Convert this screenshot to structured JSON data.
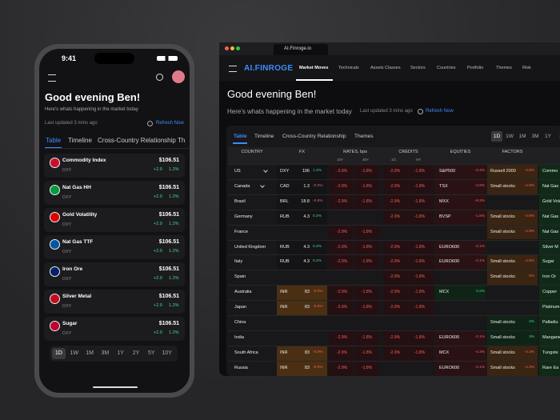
{
  "phone": {
    "time": "9:41",
    "greeting": "Good evening Ben!",
    "subtitle": "Here's whats happening in the market today",
    "updated": "Last updated 3 mins ago",
    "refresh": "Refresh Now",
    "tabs": [
      "Table",
      "Timeline",
      "Cross-Country Relationship",
      "Th"
    ],
    "items": [
      {
        "name": "Commodity Index",
        "sub": "DXY",
        "price": "$106.51",
        "change": "+2.9",
        "pct": "1.2%"
      },
      {
        "name": "Nat Gas HH",
        "sub": "DXY",
        "price": "$106.51",
        "change": "+2.9",
        "pct": "1.2%"
      },
      {
        "name": "Gold Volatility",
        "sub": "DXY",
        "price": "$106.51",
        "change": "+2.9",
        "pct": "1.2%"
      },
      {
        "name": "Nat Gas TTF",
        "sub": "DXY",
        "price": "$106.51",
        "change": "+2.9",
        "pct": "1.2%"
      },
      {
        "name": "Iron Ore",
        "sub": "DXY",
        "price": "$106.51",
        "change": "+2.9",
        "pct": "1.2%"
      },
      {
        "name": "Silver Metal",
        "sub": "DXY",
        "price": "$106.51",
        "change": "+2.9",
        "pct": "1.2%"
      },
      {
        "name": "Sugar",
        "sub": "DXY",
        "price": "$106.51",
        "change": "+2.9",
        "pct": "1.2%"
      }
    ],
    "ranges": [
      "1D",
      "1W",
      "1M",
      "3M",
      "1Y",
      "2Y",
      "5Y",
      "10Y"
    ]
  },
  "browser": {
    "tab_title": "AI.Finroge.io",
    "logo": "AI.FINROGE",
    "nav": [
      "Market Moves",
      "Technicals",
      "Assets Classes",
      "Sectors",
      "Countries",
      "Portfolio",
      "Themes",
      "Risk"
    ],
    "greeting": "Good evening Ben!",
    "subtitle": "Here's whats happening in the market today",
    "updated": "Last updated 3 mins ago",
    "refresh": "Refresh Now",
    "tabs": [
      "Table",
      "Timeline",
      "Cross-Country Relationship",
      "Themes"
    ],
    "ranges": [
      "1D",
      "1W",
      "1M",
      "3M",
      "1Y",
      "2"
    ],
    "table": {
      "groups": [
        "COUNTRY",
        "FX",
        "RATES, bps",
        "CREDITS",
        "EQUITIES",
        "FACTORS"
      ],
      "subheads": [
        "10Y",
        "30Y",
        "1G",
        "HY"
      ],
      "rows": [
        {
          "country": "US",
          "fx": [
            "DXY",
            "106",
            "1.2%"
          ],
          "rates": [
            "-2.9%",
            "-1.8%"
          ],
          "credits": [
            "-2.9%",
            "-1.8%"
          ],
          "equity": [
            "S&P500",
            "-3.4%"
          ],
          "factor": [
            "Russell 2000",
            "-4.9%"
          ],
          "commodity": "Commo"
        },
        {
          "country": "Canada",
          "fx": [
            "CAD",
            "1.3",
            "-0.0%"
          ],
          "rates": [
            "-2.9%",
            "-1.8%"
          ],
          "credits": [
            "-2.9%",
            "-1.8%"
          ],
          "equity": [
            "TSX",
            "-4.9%"
          ],
          "factor": [
            "Small stocks",
            "-4.9%"
          ],
          "commodity": "Nat Gas"
        },
        {
          "country": "Brazil",
          "fx": [
            "BRL",
            "18.8",
            "-0.6%"
          ],
          "rates": [
            "-2.9%",
            "-1.8%"
          ],
          "credits": [
            "-2.9%",
            "-1.8%"
          ],
          "equity": [
            "MXX",
            "-6.3%"
          ],
          "factor": null,
          "commodity": "Gold Volat"
        },
        {
          "country": "Germany",
          "fx": [
            "RUB",
            "4.3",
            "0.2%"
          ],
          "rates": null,
          "credits": [
            "-2.9%",
            "-1.8%"
          ],
          "equity": [
            "BVSP",
            "-1.8%"
          ],
          "factor": [
            "Small stocks",
            "-4.9%"
          ],
          "commodity": "Nat Gas"
        },
        {
          "country": "France",
          "fx": null,
          "rates": [
            "-2.9%",
            "-1.8%"
          ],
          "credits": null,
          "equity": null,
          "factor": [
            "Small stocks",
            "-4.9%"
          ],
          "commodity": "Nat Gas"
        },
        {
          "country": "United Kingdom",
          "fx": [
            "RUB",
            "4.3",
            "0.2%"
          ],
          "rates": [
            "-2.9%",
            "-1.8%"
          ],
          "credits": [
            "-2.9%",
            "-1.8%"
          ],
          "equity": [
            "EURO600",
            "-2.1%"
          ],
          "factor": null,
          "commodity": "Silver M"
        },
        {
          "country": "Italy",
          "fx": [
            "RUB",
            "4.3",
            "0.2%"
          ],
          "rates": [
            "-2.9%",
            "-1.8%"
          ],
          "credits": [
            "-2.9%",
            "-1.8%"
          ],
          "equity": [
            "EURO600",
            "-2.1%"
          ],
          "factor": [
            "Small stocks",
            "-4.9%"
          ],
          "commodity": "Sugar"
        },
        {
          "country": "Spain",
          "fx": null,
          "rates": null,
          "credits": [
            "-2.9%",
            "-1.8%"
          ],
          "equity": null,
          "factor": [
            "Small stocks",
            "-3%"
          ],
          "commodity": "Iron Or"
        },
        {
          "country": "Australia",
          "fx": [
            "INR",
            "83",
            "-0.0%"
          ],
          "rates": [
            "-2.9%",
            "-1.8%"
          ],
          "credits": [
            "-2.9%",
            "-1.8%"
          ],
          "equity": [
            "MCX",
            "0.2%"
          ],
          "factor": null,
          "commodity": "Copper"
        },
        {
          "country": "Japan",
          "fx": [
            "INR",
            "83",
            "-0.0%"
          ],
          "rates": [
            "-2.9%",
            "-1.8%"
          ],
          "credits": [
            "-2.9%",
            "-1.8%"
          ],
          "equity": null,
          "factor": null,
          "commodity": "Platinum"
        },
        {
          "country": "China",
          "fx": null,
          "rates": null,
          "credits": null,
          "equity": null,
          "factor": [
            "Small stocks",
            "3%"
          ],
          "commodity": "Palladiu"
        },
        {
          "country": "India",
          "fx": null,
          "rates": [
            "-2.9%",
            "-1.8%"
          ],
          "credits": [
            "-2.9%",
            "-1.8%"
          ],
          "equity": [
            "EURO600",
            "-2.1%"
          ],
          "factor": [
            "Small stocks",
            "3%"
          ],
          "commodity": "Mangane"
        },
        {
          "country": "South Africa",
          "fx": [
            "INR",
            "83",
            "-0.0%"
          ],
          "rates": [
            "-2.9%",
            "-1.8%"
          ],
          "credits": [
            "-2.9%",
            "-1.8%"
          ],
          "equity": [
            "MCX",
            "-4.3%"
          ],
          "factor": [
            "Small stocks",
            "-4.3%"
          ],
          "commodity": "Tungste"
        },
        {
          "country": "Russia",
          "fx": [
            "INR",
            "83",
            "-0.0%"
          ],
          "rates": [
            "-2.9%",
            "-1.8%"
          ],
          "credits": null,
          "equity": [
            "EURO600",
            "-2.1%"
          ],
          "factor": [
            "Small stocks",
            "-4.3%"
          ],
          "commodity": "Rare Ea"
        }
      ]
    }
  }
}
